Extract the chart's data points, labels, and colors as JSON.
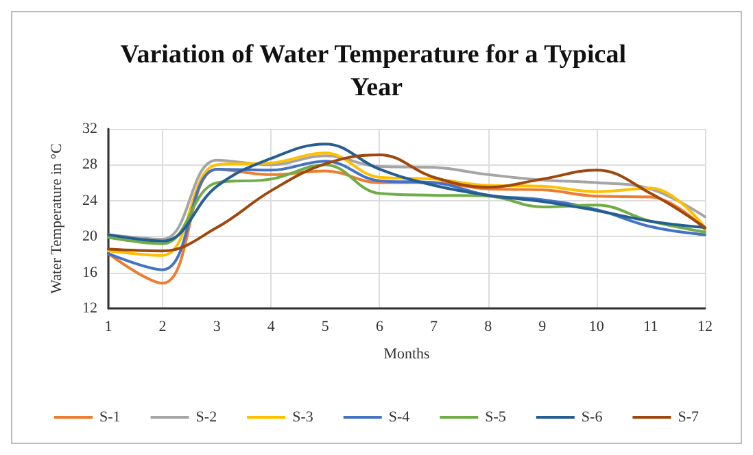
{
  "chart_data": {
    "type": "line",
    "title": "Variation of Water Temperature for a Typical Year",
    "xlabel": "Months",
    "ylabel": "Water Temperature in °C",
    "x": [
      1,
      2,
      3,
      4,
      5,
      6,
      7,
      8,
      9,
      10,
      11,
      12
    ],
    "xlim": [
      1,
      12
    ],
    "xticks": [
      1,
      2,
      3,
      4,
      5,
      6,
      7,
      8,
      9,
      10,
      11,
      12
    ],
    "ylim": [
      12,
      32
    ],
    "yticks": [
      12,
      16,
      20,
      24,
      28,
      32
    ],
    "grid": true,
    "legend": "bottom",
    "marker": "none",
    "line_style": "solid",
    "series": [
      {
        "name": "S-1",
        "color": "#ed7d31",
        "values": [
          18.1,
          14.8,
          27.5,
          26.9,
          27.3,
          26.0,
          26.0,
          25.3,
          25.2,
          24.5,
          24.4,
          20.8
        ]
      },
      {
        "name": "S-2",
        "color": "#a5a5a5",
        "values": [
          20.2,
          19.7,
          28.5,
          28.0,
          29.0,
          27.8,
          27.7,
          26.9,
          26.3,
          26.0,
          25.3,
          22.2
        ]
      },
      {
        "name": "S-3",
        "color": "#ffc000",
        "values": [
          18.4,
          17.9,
          28.0,
          28.2,
          29.3,
          26.6,
          26.4,
          25.7,
          25.6,
          25.0,
          25.4,
          21.0
        ]
      },
      {
        "name": "S-4",
        "color": "#4472c4",
        "values": [
          18.1,
          16.3,
          27.5,
          27.4,
          28.4,
          26.2,
          26.0,
          24.6,
          24.1,
          23.0,
          21.1,
          20.2
        ]
      },
      {
        "name": "S-5",
        "color": "#70ad47",
        "values": [
          19.9,
          19.2,
          26.0,
          26.4,
          28.0,
          24.8,
          24.6,
          24.5,
          23.3,
          23.5,
          21.7,
          20.5
        ]
      },
      {
        "name": "S-6",
        "color": "#255e91",
        "values": [
          20.2,
          19.5,
          25.6,
          28.7,
          30.3,
          27.5,
          25.7,
          24.6,
          23.9,
          22.9,
          21.7,
          21.0
        ]
      },
      {
        "name": "S-7",
        "color": "#9e480e",
        "values": [
          18.6,
          18.4,
          21.0,
          25.1,
          28.1,
          29.1,
          26.6,
          25.5,
          26.4,
          27.4,
          24.8,
          21.0
        ]
      }
    ]
  }
}
